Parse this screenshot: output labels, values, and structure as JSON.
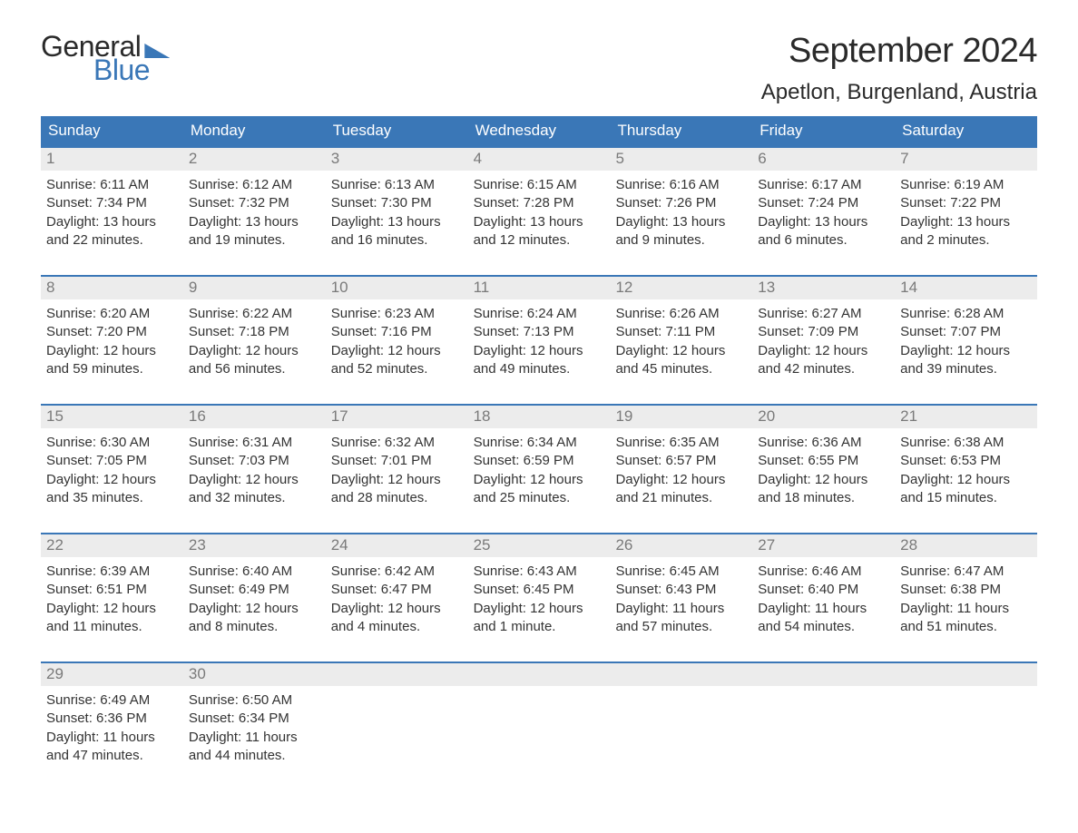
{
  "logo": {
    "text1": "General",
    "text2": "Blue"
  },
  "title": "September 2024",
  "location": "Apetlon, Burgenland, Austria",
  "colors": {
    "header_bg": "#3a77b7",
    "daynum_bg": "#ececec",
    "daynum_fg": "#7a7a7a",
    "text": "#333333",
    "page_bg": "#ffffff"
  },
  "weekdays": [
    "Sunday",
    "Monday",
    "Tuesday",
    "Wednesday",
    "Thursday",
    "Friday",
    "Saturday"
  ],
  "weeks": [
    [
      {
        "n": "1",
        "sunrise": "6:11 AM",
        "sunset": "7:34 PM",
        "daylight": "13 hours and 22 minutes."
      },
      {
        "n": "2",
        "sunrise": "6:12 AM",
        "sunset": "7:32 PM",
        "daylight": "13 hours and 19 minutes."
      },
      {
        "n": "3",
        "sunrise": "6:13 AM",
        "sunset": "7:30 PM",
        "daylight": "13 hours and 16 minutes."
      },
      {
        "n": "4",
        "sunrise": "6:15 AM",
        "sunset": "7:28 PM",
        "daylight": "13 hours and 12 minutes."
      },
      {
        "n": "5",
        "sunrise": "6:16 AM",
        "sunset": "7:26 PM",
        "daylight": "13 hours and 9 minutes."
      },
      {
        "n": "6",
        "sunrise": "6:17 AM",
        "sunset": "7:24 PM",
        "daylight": "13 hours and 6 minutes."
      },
      {
        "n": "7",
        "sunrise": "6:19 AM",
        "sunset": "7:22 PM",
        "daylight": "13 hours and 2 minutes."
      }
    ],
    [
      {
        "n": "8",
        "sunrise": "6:20 AM",
        "sunset": "7:20 PM",
        "daylight": "12 hours and 59 minutes."
      },
      {
        "n": "9",
        "sunrise": "6:22 AM",
        "sunset": "7:18 PM",
        "daylight": "12 hours and 56 minutes."
      },
      {
        "n": "10",
        "sunrise": "6:23 AM",
        "sunset": "7:16 PM",
        "daylight": "12 hours and 52 minutes."
      },
      {
        "n": "11",
        "sunrise": "6:24 AM",
        "sunset": "7:13 PM",
        "daylight": "12 hours and 49 minutes."
      },
      {
        "n": "12",
        "sunrise": "6:26 AM",
        "sunset": "7:11 PM",
        "daylight": "12 hours and 45 minutes."
      },
      {
        "n": "13",
        "sunrise": "6:27 AM",
        "sunset": "7:09 PM",
        "daylight": "12 hours and 42 minutes."
      },
      {
        "n": "14",
        "sunrise": "6:28 AM",
        "sunset": "7:07 PM",
        "daylight": "12 hours and 39 minutes."
      }
    ],
    [
      {
        "n": "15",
        "sunrise": "6:30 AM",
        "sunset": "7:05 PM",
        "daylight": "12 hours and 35 minutes."
      },
      {
        "n": "16",
        "sunrise": "6:31 AM",
        "sunset": "7:03 PM",
        "daylight": "12 hours and 32 minutes."
      },
      {
        "n": "17",
        "sunrise": "6:32 AM",
        "sunset": "7:01 PM",
        "daylight": "12 hours and 28 minutes."
      },
      {
        "n": "18",
        "sunrise": "6:34 AM",
        "sunset": "6:59 PM",
        "daylight": "12 hours and 25 minutes."
      },
      {
        "n": "19",
        "sunrise": "6:35 AM",
        "sunset": "6:57 PM",
        "daylight": "12 hours and 21 minutes."
      },
      {
        "n": "20",
        "sunrise": "6:36 AM",
        "sunset": "6:55 PM",
        "daylight": "12 hours and 18 minutes."
      },
      {
        "n": "21",
        "sunrise": "6:38 AM",
        "sunset": "6:53 PM",
        "daylight": "12 hours and 15 minutes."
      }
    ],
    [
      {
        "n": "22",
        "sunrise": "6:39 AM",
        "sunset": "6:51 PM",
        "daylight": "12 hours and 11 minutes."
      },
      {
        "n": "23",
        "sunrise": "6:40 AM",
        "sunset": "6:49 PM",
        "daylight": "12 hours and 8 minutes."
      },
      {
        "n": "24",
        "sunrise": "6:42 AM",
        "sunset": "6:47 PM",
        "daylight": "12 hours and 4 minutes."
      },
      {
        "n": "25",
        "sunrise": "6:43 AM",
        "sunset": "6:45 PM",
        "daylight": "12 hours and 1 minute."
      },
      {
        "n": "26",
        "sunrise": "6:45 AM",
        "sunset": "6:43 PM",
        "daylight": "11 hours and 57 minutes."
      },
      {
        "n": "27",
        "sunrise": "6:46 AM",
        "sunset": "6:40 PM",
        "daylight": "11 hours and 54 minutes."
      },
      {
        "n": "28",
        "sunrise": "6:47 AM",
        "sunset": "6:38 PM",
        "daylight": "11 hours and 51 minutes."
      }
    ],
    [
      {
        "n": "29",
        "sunrise": "6:49 AM",
        "sunset": "6:36 PM",
        "daylight": "11 hours and 47 minutes."
      },
      {
        "n": "30",
        "sunrise": "6:50 AM",
        "sunset": "6:34 PM",
        "daylight": "11 hours and 44 minutes."
      },
      {
        "empty": true
      },
      {
        "empty": true
      },
      {
        "empty": true
      },
      {
        "empty": true
      },
      {
        "empty": true
      }
    ]
  ],
  "labels": {
    "sunrise": "Sunrise: ",
    "sunset": "Sunset: ",
    "daylight": "Daylight: "
  }
}
